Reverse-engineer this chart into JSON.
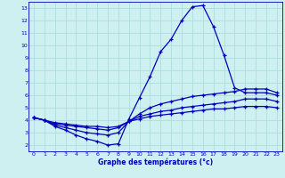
{
  "xlabel": "Graphe des températures (°c)",
  "xlim": [
    -0.5,
    23.5
  ],
  "ylim": [
    1.5,
    13.5
  ],
  "xticks": [
    0,
    1,
    2,
    3,
    4,
    5,
    6,
    7,
    8,
    9,
    10,
    11,
    12,
    13,
    14,
    15,
    16,
    17,
    18,
    19,
    20,
    21,
    22,
    23
  ],
  "yticks": [
    2,
    3,
    4,
    5,
    6,
    7,
    8,
    9,
    10,
    11,
    12,
    13
  ],
  "bg_color": "#cff0f0",
  "line_color": "#0000bb",
  "grid_color": "#aadddd",
  "line1_x": [
    0,
    1,
    2,
    3,
    4,
    5,
    6,
    7,
    8,
    9,
    10,
    11,
    12,
    13,
    14,
    15,
    16,
    17,
    18,
    19,
    20,
    21,
    22,
    23
  ],
  "line1_y": [
    4.2,
    4.0,
    3.5,
    3.2,
    2.8,
    2.5,
    2.3,
    2.0,
    2.1,
    4.1,
    5.8,
    7.5,
    9.5,
    10.5,
    12.0,
    13.1,
    13.2,
    11.5,
    9.2,
    6.6,
    6.2,
    6.2,
    6.2,
    6.0
  ],
  "line2_x": [
    0,
    1,
    2,
    3,
    4,
    5,
    6,
    7,
    8,
    9,
    10,
    11,
    12,
    13,
    14,
    15,
    16,
    17,
    18,
    19,
    20,
    21,
    22,
    23
  ],
  "line2_y": [
    4.2,
    4.0,
    3.6,
    3.4,
    3.2,
    3.0,
    2.9,
    2.8,
    3.0,
    3.9,
    4.5,
    5.0,
    5.3,
    5.5,
    5.7,
    5.9,
    6.0,
    6.1,
    6.2,
    6.3,
    6.5,
    6.5,
    6.5,
    6.2
  ],
  "line3_x": [
    0,
    1,
    2,
    3,
    4,
    5,
    6,
    7,
    8,
    9,
    10,
    11,
    12,
    13,
    14,
    15,
    16,
    17,
    18,
    19,
    20,
    21,
    22,
    23
  ],
  "line3_y": [
    4.2,
    4.0,
    3.7,
    3.6,
    3.5,
    3.4,
    3.3,
    3.2,
    3.4,
    3.9,
    4.3,
    4.5,
    4.7,
    4.8,
    5.0,
    5.1,
    5.2,
    5.3,
    5.4,
    5.5,
    5.7,
    5.7,
    5.7,
    5.5
  ],
  "line4_x": [
    0,
    1,
    2,
    3,
    4,
    5,
    6,
    7,
    8,
    9,
    10,
    11,
    12,
    13,
    14,
    15,
    16,
    17,
    18,
    19,
    20,
    21,
    22,
    23
  ],
  "line4_y": [
    4.2,
    4.0,
    3.8,
    3.7,
    3.6,
    3.5,
    3.5,
    3.4,
    3.5,
    3.9,
    4.1,
    4.3,
    4.4,
    4.5,
    4.6,
    4.7,
    4.8,
    4.9,
    4.9,
    5.0,
    5.1,
    5.1,
    5.1,
    5.0
  ]
}
